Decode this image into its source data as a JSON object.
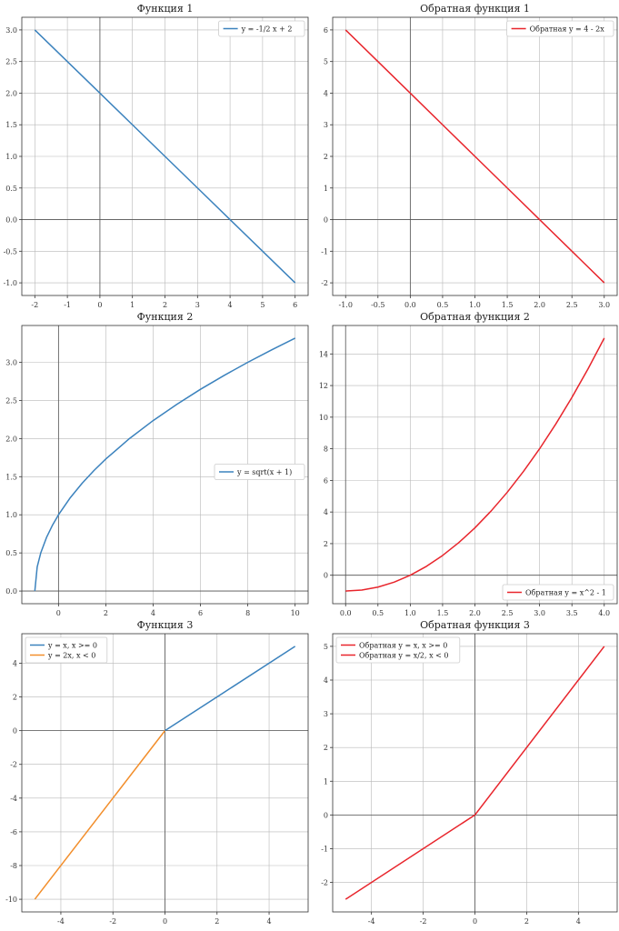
{
  "colors": {
    "blue": "#3b82bd",
    "orange": "#f28e2b",
    "red": "#e8252c"
  },
  "chart_data": [
    {
      "type": "line",
      "title": "Функция 1",
      "xlim": [
        -2.4,
        6.4
      ],
      "ylim": [
        -1.2,
        3.2
      ],
      "xticks": [
        -2,
        -1,
        0,
        1,
        2,
        3,
        4,
        5,
        6
      ],
      "xtick_labels": [
        "-2",
        "-1",
        "0",
        "1",
        "2",
        "3",
        "4",
        "5",
        "6"
      ],
      "yticks": [
        -1.0,
        -0.5,
        0.0,
        0.5,
        1.0,
        1.5,
        2.0,
        2.5,
        3.0
      ],
      "ytick_labels": [
        "-1.0",
        "-0.5",
        "0.0",
        "0.5",
        "1.0",
        "1.5",
        "2.0",
        "2.5",
        "3.0"
      ],
      "grid": true,
      "legend_position": "upper-right",
      "series": [
        {
          "name": "y = -1/2 x + 2",
          "color": "#3b82bd",
          "x": [
            -2,
            -1,
            0,
            1,
            2,
            3,
            4,
            5,
            6
          ],
          "y": [
            3,
            2.5,
            2,
            1.5,
            1,
            0.5,
            0,
            -0.5,
            -1
          ]
        }
      ]
    },
    {
      "type": "line",
      "title": "Обратная функция 1",
      "xlim": [
        -1.2,
        3.2
      ],
      "ylim": [
        -2.4,
        6.4
      ],
      "xticks": [
        -1.0,
        -0.5,
        0.0,
        0.5,
        1.0,
        1.5,
        2.0,
        2.5,
        3.0
      ],
      "xtick_labels": [
        "-1.0",
        "-0.5",
        "0.0",
        "0.5",
        "1.0",
        "1.5",
        "2.0",
        "2.5",
        "3.0"
      ],
      "yticks": [
        -2,
        -1,
        0,
        1,
        2,
        3,
        4,
        5,
        6
      ],
      "ytick_labels": [
        "-2",
        "-1",
        "0",
        "1",
        "2",
        "3",
        "4",
        "5",
        "6"
      ],
      "grid": true,
      "legend_position": "upper-right",
      "series": [
        {
          "name": "Обратная y = 4 - 2x",
          "color": "#e8252c",
          "x": [
            -1,
            -0.5,
            0,
            0.5,
            1,
            1.5,
            2,
            2.5,
            3
          ],
          "y": [
            6,
            5,
            4,
            3,
            2,
            1,
            0,
            -1,
            -2
          ]
        }
      ]
    },
    {
      "type": "line",
      "title": "Функция 2",
      "xlim": [
        -1.55,
        10.55
      ],
      "ylim": [
        -0.166,
        3.483
      ],
      "xticks": [
        0,
        2,
        4,
        6,
        8,
        10
      ],
      "xtick_labels": [
        "0",
        "2",
        "4",
        "6",
        "8",
        "10"
      ],
      "yticks": [
        0.0,
        0.5,
        1.0,
        1.5,
        2.0,
        2.5,
        3.0
      ],
      "ytick_labels": [
        "0.0",
        "0.5",
        "1.0",
        "1.5",
        "2.0",
        "2.5",
        "3.0"
      ],
      "grid": true,
      "legend_position": "center-right",
      "series": [
        {
          "name": "y = sqrt(x + 1)",
          "color": "#3b82bd",
          "x": [
            -1,
            -0.9,
            -0.75,
            -0.5,
            -0.25,
            0,
            0.5,
            1,
            1.5,
            2,
            3,
            4,
            5,
            6,
            7,
            8,
            9,
            10
          ],
          "y": [
            0,
            0.316,
            0.5,
            0.707,
            0.866,
            1,
            1.225,
            1.414,
            1.581,
            1.732,
            2,
            2.236,
            2.449,
            2.646,
            2.828,
            3,
            3.162,
            3.317
          ]
        }
      ]
    },
    {
      "type": "line",
      "title": "Обратная функция 2",
      "xlim": [
        -0.2,
        4.2
      ],
      "ylim": [
        -1.8,
        15.8
      ],
      "xticks": [
        0.0,
        0.5,
        1.0,
        1.5,
        2.0,
        2.5,
        3.0,
        3.5,
        4.0
      ],
      "xtick_labels": [
        "0.0",
        "0.5",
        "1.0",
        "1.5",
        "2.0",
        "2.5",
        "3.0",
        "3.5",
        "4.0"
      ],
      "yticks": [
        0,
        2,
        4,
        6,
        8,
        10,
        12,
        14
      ],
      "ytick_labels": [
        "0",
        "2",
        "4",
        "6",
        "8",
        "10",
        "12",
        "14"
      ],
      "grid": true,
      "legend_position": "lower-right",
      "series": [
        {
          "name": "Обратная y = x^2 - 1",
          "color": "#e8252c",
          "x": [
            0,
            0.25,
            0.5,
            0.75,
            1,
            1.25,
            1.5,
            1.75,
            2,
            2.25,
            2.5,
            2.75,
            3,
            3.25,
            3.5,
            3.75,
            4
          ],
          "y": [
            -1,
            -0.938,
            -0.75,
            -0.438,
            0,
            0.563,
            1.25,
            2.063,
            3,
            4.063,
            5.25,
            6.563,
            8,
            9.563,
            11.25,
            13.063,
            15
          ]
        }
      ]
    },
    {
      "type": "line",
      "title": "Функция 3",
      "xlim": [
        -5.5,
        5.5
      ],
      "ylim": [
        -10.75,
        5.75
      ],
      "xticks": [
        -4,
        -2,
        0,
        2,
        4
      ],
      "xtick_labels": [
        "-4",
        "-2",
        "0",
        "2",
        "4"
      ],
      "yticks": [
        -10,
        -8,
        -6,
        -4,
        -2,
        0,
        2,
        4
      ],
      "ytick_labels": [
        "-10",
        "-8",
        "-6",
        "-4",
        "-2",
        "0",
        "2",
        "4"
      ],
      "grid": true,
      "legend_position": "upper-left",
      "series": [
        {
          "name": "y = x, x >= 0",
          "color": "#3b82bd",
          "x": [
            0,
            5
          ],
          "y": [
            0,
            5
          ]
        },
        {
          "name": "y = 2x, x < 0",
          "color": "#f28e2b",
          "x": [
            -5,
            0
          ],
          "y": [
            -10,
            0
          ]
        }
      ]
    },
    {
      "type": "line",
      "title": "Обратная функция 3",
      "xlim": [
        -5.5,
        5.5
      ],
      "ylim": [
        -2.875,
        5.375
      ],
      "xticks": [
        -4,
        -2,
        0,
        2,
        4
      ],
      "xtick_labels": [
        "-4",
        "-2",
        "0",
        "2",
        "4"
      ],
      "yticks": [
        -2,
        -1,
        0,
        1,
        2,
        3,
        4,
        5
      ],
      "ytick_labels": [
        "-2",
        "-1",
        "0",
        "1",
        "2",
        "3",
        "4",
        "5"
      ],
      "grid": true,
      "legend_position": "upper-left",
      "series": [
        {
          "name": "Обратная y = x, x >= 0",
          "color": "#e8252c",
          "x": [
            0,
            5
          ],
          "y": [
            0,
            5
          ]
        },
        {
          "name": "Обратная y = x/2, x < 0",
          "color": "#e8252c",
          "x": [
            -5,
            0
          ],
          "y": [
            -2.5,
            0
          ]
        }
      ]
    }
  ]
}
